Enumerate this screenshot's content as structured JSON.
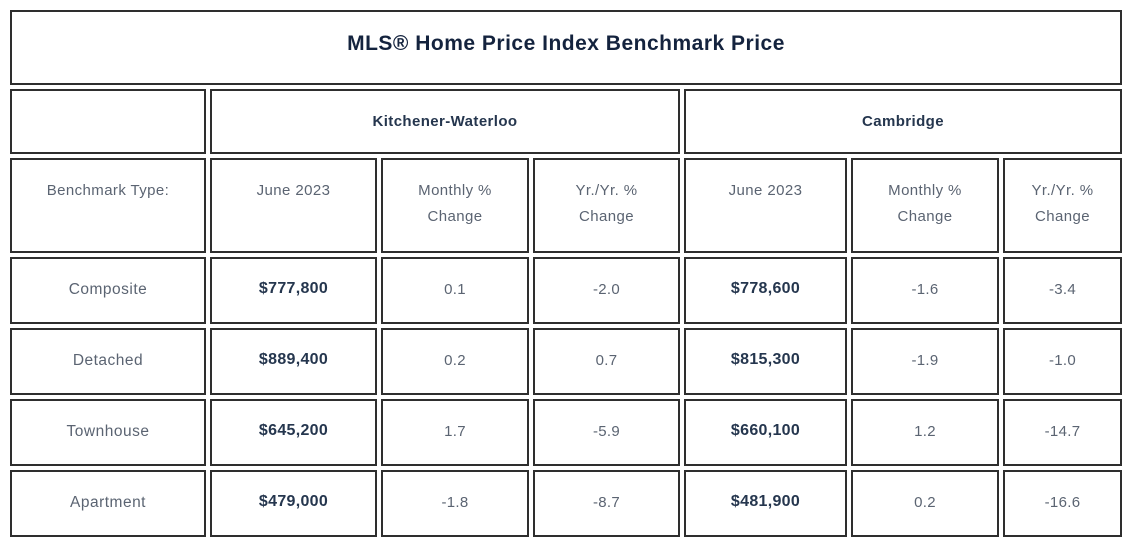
{
  "title": "MLS® Home Price Index Benchmark Price",
  "regions": {
    "kw": "Kitchener-Waterloo",
    "cam": "Cambridge"
  },
  "header": {
    "benchmark_label": "Benchmark Type:",
    "kw": [
      "June 2023",
      "Monthly %\nChange",
      "Yr./Yr. %\nChange"
    ],
    "cam": [
      "June 2023",
      "Monthly %\nChange",
      "Yr./Yr. %\nChange"
    ]
  },
  "rows": [
    {
      "label": "Composite",
      "kw_price": "$777,800",
      "kw_monthly": "0.1",
      "kw_yoy": "-2.0",
      "cam_price": "$778,600",
      "cam_monthly": "-1.6",
      "cam_yoy": "-3.4"
    },
    {
      "label": "Detached",
      "kw_price": "$889,400",
      "kw_monthly": "0.2",
      "kw_yoy": "0.7",
      "cam_price": "$815,300",
      "cam_monthly": "-1.9",
      "cam_yoy": "-1.0"
    },
    {
      "label": "Townhouse",
      "kw_price": "$645,200",
      "kw_monthly": "1.7",
      "kw_yoy": "-5.9",
      "cam_price": "$660,100",
      "cam_monthly": "1.2",
      "cam_yoy": "-14.7"
    },
    {
      "label": "Apartment",
      "kw_price": "$479,000",
      "kw_monthly": "-1.8",
      "kw_yoy": "-8.7",
      "cam_price": "$481,900",
      "cam_monthly": "0.2",
      "cam_yoy": "-16.6"
    }
  ],
  "colors": {
    "border": "#2e2e2e",
    "title_text": "#14233e",
    "price_text": "#25364e",
    "muted_text": "#5b6472",
    "cell_background": "#ffffff"
  },
  "chart_data": {
    "type": "table",
    "title": "MLS® Home Price Index Benchmark Price",
    "column_groups": [
      "",
      "Kitchener-Waterloo",
      "Cambridge"
    ],
    "columns": [
      "Benchmark Type:",
      "June 2023",
      "Monthly % Change",
      "Yr./Yr. % Change",
      "June 2023",
      "Monthly % Change",
      "Yr./Yr. % Change"
    ],
    "rows": [
      [
        "Composite",
        "$777,800",
        0.1,
        -2.0,
        "$778,600",
        -1.6,
        -3.4
      ],
      [
        "Detached",
        "$889,400",
        0.2,
        0.7,
        "$815,300",
        -1.9,
        -1.0
      ],
      [
        "Townhouse",
        "$645,200",
        1.7,
        -5.9,
        "$660,100",
        1.2,
        -14.7
      ],
      [
        "Apartment",
        "$479,000",
        -1.8,
        -8.7,
        "$481,900",
        0.2,
        -16.6
      ]
    ]
  }
}
